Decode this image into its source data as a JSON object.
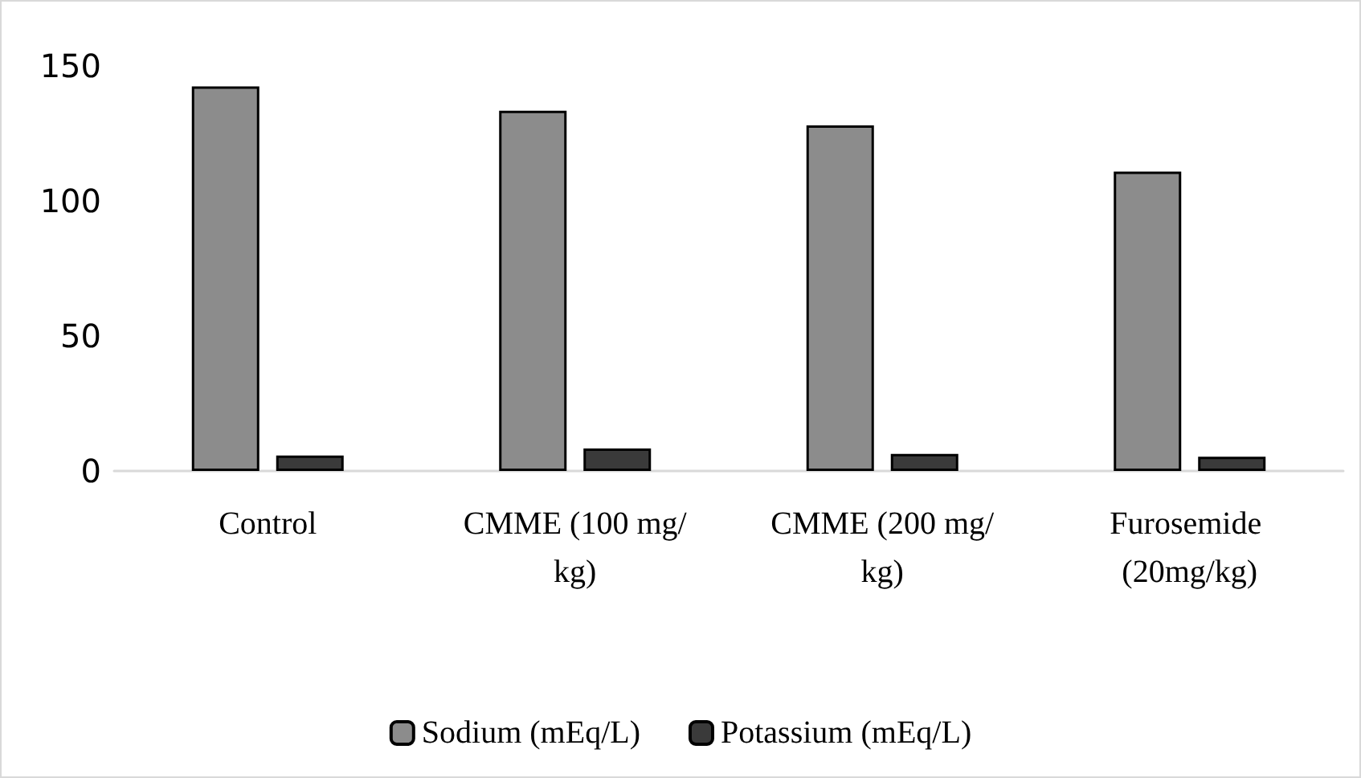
{
  "chart_data": {
    "type": "bar",
    "categories": [
      "Control",
      "CMME (100 mg/kg)",
      "CMME (200 mg/kg)",
      "Furosemide (20mg/kg)"
    ],
    "series": [
      {
        "name": "Sodium (mEq/L)",
        "color": "#8c8c8c",
        "values": [
          142.4,
          133.4,
          128,
          110.9
        ]
      },
      {
        "name": "Potassium (mEq/L)",
        "color": "#3a3a3a",
        "values": [
          5.7,
          8.3,
          6.3,
          5.3
        ]
      }
    ],
    "ylim": [
      0,
      150
    ],
    "yticks": [
      0,
      50,
      100,
      150
    ],
    "grid": false,
    "legend": "bottom"
  }
}
